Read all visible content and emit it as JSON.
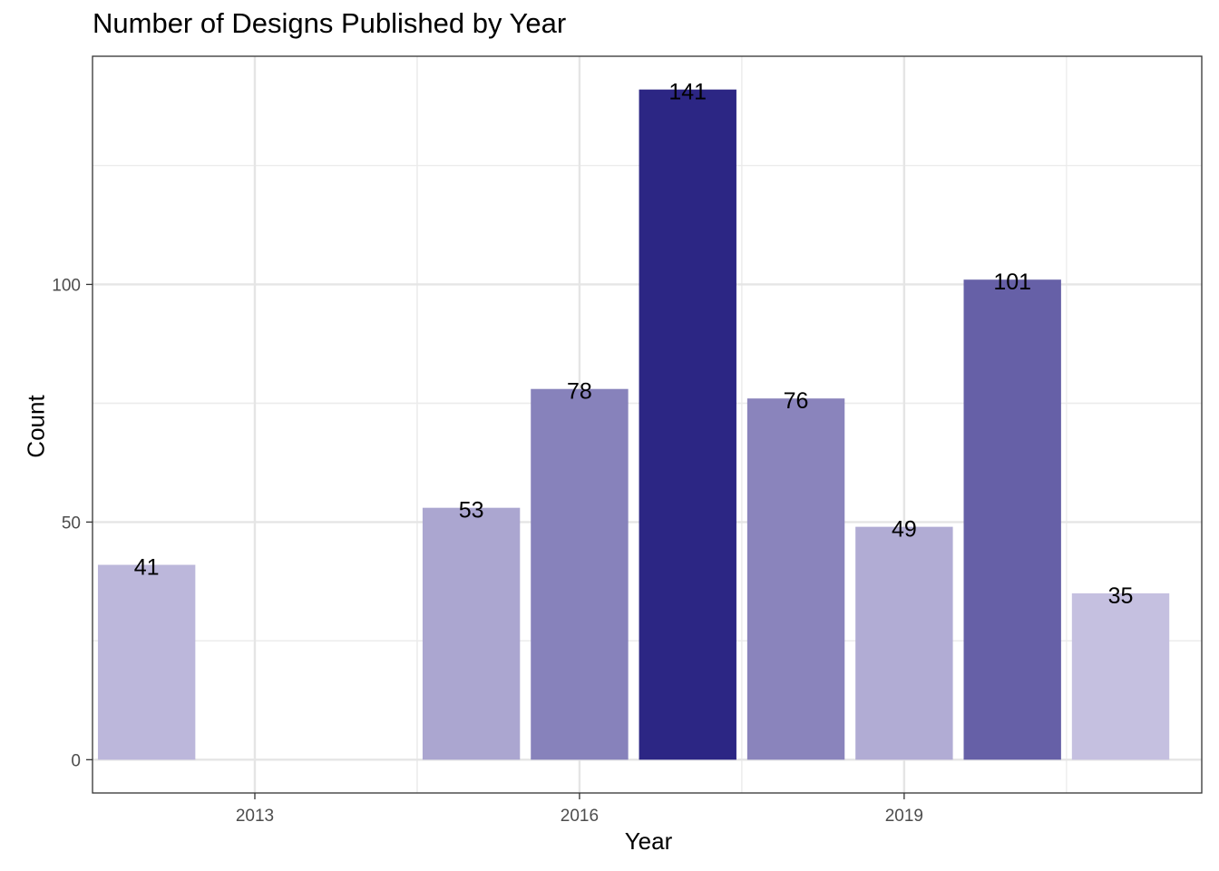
{
  "chart_data": {
    "type": "bar",
    "title": "Number of Designs Published by Year",
    "xlabel": "Year",
    "ylabel": "Count",
    "x": [
      2012,
      2015,
      2016,
      2017,
      2018,
      2019,
      2020,
      2021
    ],
    "values": [
      41,
      53,
      78,
      141,
      76,
      49,
      101,
      35
    ],
    "data_labels": [
      "41",
      "53",
      "78",
      "141",
      "76",
      "49",
      "101",
      "35"
    ],
    "xlim": [
      2011.5,
      2021.75
    ],
    "ylim": [
      -7,
      148
    ],
    "x_ticks": [
      2013,
      2016,
      2019
    ],
    "x_tick_labels": [
      "2013",
      "2016",
      "2019"
    ],
    "y_ticks": [
      0,
      50,
      100
    ],
    "y_tick_labels": [
      "0",
      "50",
      "100"
    ],
    "grid": true,
    "legend": "none",
    "fill_scale": {
      "low_color": "#c5c0e0",
      "high_color": "#2c2684",
      "min": 35,
      "max": 141
    }
  }
}
